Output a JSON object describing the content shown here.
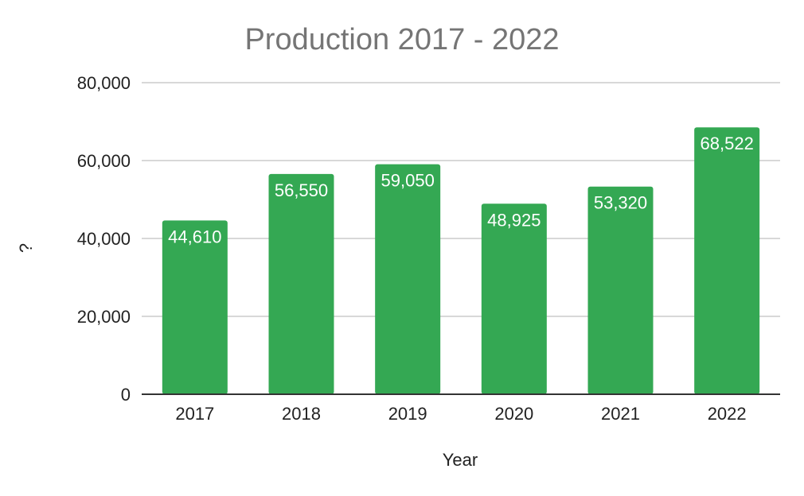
{
  "chart_data": {
    "type": "bar",
    "title": "Production 2017 - 2022",
    "xlabel": "Year",
    "ylabel": "?",
    "categories": [
      "2017",
      "2018",
      "2019",
      "2020",
      "2021",
      "2022"
    ],
    "values": [
      44610,
      56550,
      59050,
      48925,
      53320,
      68522
    ],
    "data_labels": [
      "44,610",
      "56,550",
      "59,050",
      "48,925",
      "53,320",
      "68,522"
    ],
    "ylim": [
      0,
      80000
    ],
    "yticks": [
      0,
      20000,
      40000,
      60000,
      80000
    ],
    "ytick_labels": [
      "0",
      "20,000",
      "40,000",
      "60,000",
      "80,000"
    ],
    "grid": true,
    "legend": "none",
    "colors": {
      "bar": "#34a853",
      "title": "#757575",
      "grid": "#cccccc",
      "axis": "#333333"
    }
  }
}
